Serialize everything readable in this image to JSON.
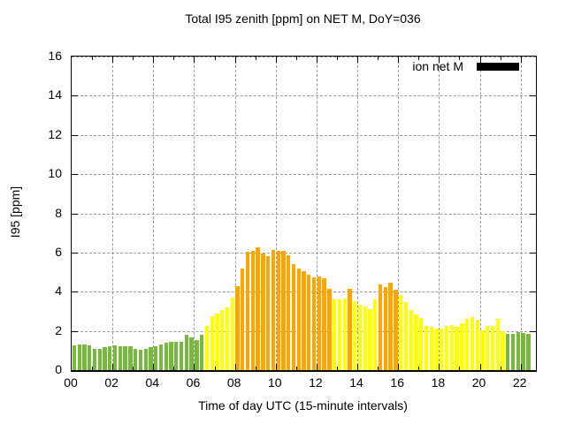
{
  "chart_data": {
    "type": "bar",
    "title": "Total I95 zenith [ppm] on NET M, DoY=036",
    "xlabel": "Time of day UTC (15-minute intervals)",
    "ylabel": "I95 [ppm]",
    "ylim": [
      0,
      16
    ],
    "xlim_hours": [
      0,
      22.75
    ],
    "grid": true,
    "interval_minutes": 15,
    "legend": {
      "label": "ion net M",
      "swatch_color": "#000000",
      "position": "top-right"
    },
    "colors": {
      "green": "#77B93C",
      "yellow": "#FFFF00",
      "orange": "#FFA500"
    },
    "yticks": [
      {
        "v": 0,
        "label": "0"
      },
      {
        "v": 2,
        "label": "2"
      },
      {
        "v": 4,
        "label": "4"
      },
      {
        "v": 6,
        "label": "6"
      },
      {
        "v": 8,
        "label": "8"
      },
      {
        "v": 10,
        "label": "10"
      },
      {
        "v": 12,
        "label": "12"
      },
      {
        "v": 14,
        "label": "14"
      },
      {
        "v": 16,
        "label": "16"
      }
    ],
    "xticks": [
      {
        "h": 0,
        "label": "00"
      },
      {
        "h": 2,
        "label": "02"
      },
      {
        "h": 4,
        "label": "04"
      },
      {
        "h": 6,
        "label": "06"
      },
      {
        "h": 8,
        "label": "08"
      },
      {
        "h": 10,
        "label": "10"
      },
      {
        "h": 12,
        "label": "12"
      },
      {
        "h": 14,
        "label": "14"
      },
      {
        "h": 16,
        "label": "16"
      },
      {
        "h": 18,
        "label": "18"
      },
      {
        "h": 20,
        "label": "20"
      },
      {
        "h": 22,
        "label": "22"
      }
    ],
    "times": [
      "00:00",
      "00:15",
      "00:30",
      "00:45",
      "01:00",
      "01:15",
      "01:30",
      "01:45",
      "02:00",
      "02:15",
      "02:30",
      "02:45",
      "03:00",
      "03:15",
      "03:30",
      "03:45",
      "04:00",
      "04:15",
      "04:30",
      "04:45",
      "05:00",
      "05:15",
      "05:30",
      "05:45",
      "06:00",
      "06:15",
      "06:30",
      "06:45",
      "07:00",
      "07:15",
      "07:30",
      "07:45",
      "08:00",
      "08:15",
      "08:30",
      "08:45",
      "09:00",
      "09:15",
      "09:30",
      "09:45",
      "10:00",
      "10:15",
      "10:30",
      "10:45",
      "11:00",
      "11:15",
      "11:30",
      "11:45",
      "12:00",
      "12:15",
      "12:30",
      "12:45",
      "13:00",
      "13:15",
      "13:30",
      "13:45",
      "14:00",
      "14:15",
      "14:30",
      "14:45",
      "15:00",
      "15:15",
      "15:30",
      "15:45",
      "16:00",
      "16:15",
      "16:30",
      "16:45",
      "17:00",
      "17:15",
      "17:30",
      "17:45",
      "18:00",
      "18:15",
      "18:30",
      "18:45",
      "19:00",
      "19:15",
      "19:30",
      "19:45",
      "20:00",
      "20:15",
      "20:30",
      "20:45",
      "21:00",
      "21:15",
      "21:30",
      "21:45",
      "22:00",
      "22:15"
    ],
    "values": [
      1.25,
      1.3,
      1.3,
      1.25,
      1.1,
      1.1,
      1.15,
      1.2,
      1.25,
      1.2,
      1.2,
      1.2,
      1.1,
      1.05,
      1.1,
      1.15,
      1.2,
      1.3,
      1.4,
      1.45,
      1.45,
      1.45,
      1.8,
      1.65,
      1.55,
      1.8,
      2.25,
      2.75,
      2.9,
      3.05,
      3.2,
      3.7,
      4.3,
      5.2,
      6.05,
      6.1,
      6.25,
      5.95,
      5.8,
      6.15,
      6.1,
      6.1,
      5.85,
      5.4,
      5.2,
      5.05,
      4.85,
      4.75,
      4.8,
      4.7,
      4.15,
      3.6,
      3.6,
      3.65,
      4.15,
      3.5,
      3.35,
      3.25,
      3.1,
      3.6,
      4.35,
      4.25,
      4.45,
      4.1,
      3.85,
      3.45,
      3.05,
      2.85,
      2.65,
      2.25,
      2.2,
      2.1,
      2.1,
      2.25,
      2.3,
      2.2,
      2.4,
      2.6,
      2.7,
      2.55,
      2.05,
      2.25,
      2.25,
      2.6,
      2.0,
      1.85,
      1.85,
      1.95,
      1.9,
      1.85
    ],
    "levels": [
      "green",
      "green",
      "green",
      "green",
      "green",
      "green",
      "green",
      "green",
      "green",
      "green",
      "green",
      "green",
      "green",
      "green",
      "green",
      "green",
      "green",
      "green",
      "green",
      "green",
      "green",
      "green",
      "green",
      "green",
      "green",
      "green",
      "yellow",
      "yellow",
      "yellow",
      "yellow",
      "yellow",
      "yellow",
      "orange",
      "orange",
      "orange",
      "orange",
      "orange",
      "orange",
      "orange",
      "orange",
      "orange",
      "orange",
      "orange",
      "orange",
      "orange",
      "orange",
      "orange",
      "orange",
      "orange",
      "orange",
      "orange",
      "yellow",
      "yellow",
      "yellow",
      "orange",
      "yellow",
      "yellow",
      "yellow",
      "yellow",
      "yellow",
      "orange",
      "orange",
      "orange",
      "orange",
      "yellow",
      "yellow",
      "yellow",
      "yellow",
      "yellow",
      "yellow",
      "yellow",
      "yellow",
      "yellow",
      "yellow",
      "yellow",
      "yellow",
      "yellow",
      "yellow",
      "yellow",
      "yellow",
      "yellow",
      "yellow",
      "yellow",
      "yellow",
      "yellow",
      "green",
      "green",
      "green",
      "green",
      "green"
    ]
  }
}
